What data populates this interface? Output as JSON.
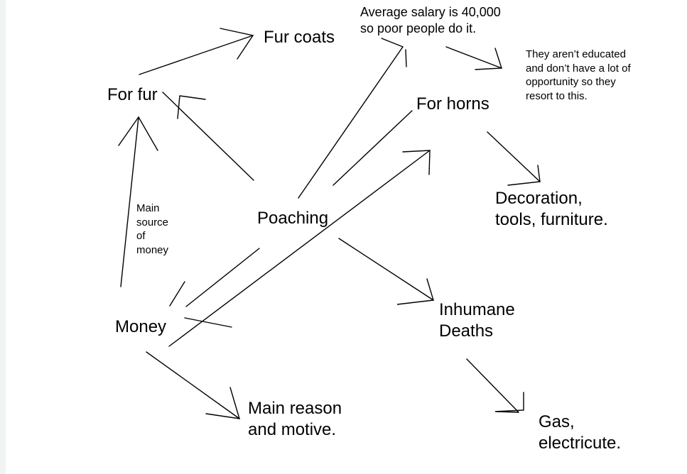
{
  "nodes": {
    "fur_coats": "Fur coats",
    "salary_note": [
      "Average salary is 40,000",
      "so poor people do it."
    ],
    "education_note": [
      "They aren’t educated",
      "and don’t have a lot of",
      "opportunity so they",
      "resort to this."
    ],
    "for_fur": "For fur",
    "for_horns": "For horns",
    "decoration": [
      "Decoration,",
      "tools, furniture."
    ],
    "main_source": [
      "Main",
      "source",
      "of",
      "money"
    ],
    "poaching": "Poaching",
    "money": "Money",
    "inhumane_deaths": [
      "Inhumane",
      "Deaths"
    ],
    "main_reason": [
      "Main reason",
      "and motive."
    ],
    "gas": [
      "Gas,",
      "electricute."
    ]
  }
}
